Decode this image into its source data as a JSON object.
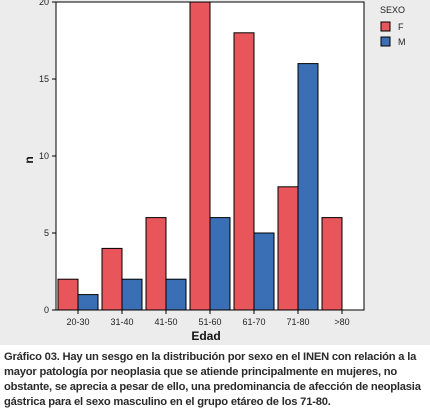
{
  "chart_data": {
    "type": "bar",
    "categories": [
      "20-30",
      "31-40",
      "41-50",
      "51-60",
      "61-70",
      "71-80",
      ">80"
    ],
    "series": [
      {
        "name": "F",
        "values": [
          2,
          4,
          6,
          20,
          18,
          8,
          6
        ],
        "color": "#e8555a"
      },
      {
        "name": "M",
        "values": [
          1,
          2,
          2,
          6,
          5,
          16,
          0
        ],
        "color": "#3a6fb5"
      }
    ],
    "title": "",
    "xlabel": "Edad",
    "ylabel": "n",
    "ylim": [
      0,
      20
    ],
    "yticks": [
      0,
      5,
      10,
      15,
      20
    ],
    "legend": {
      "title": "SEXO",
      "placement": "top-right"
    },
    "grid": false
  },
  "caption": "Gráfico 03. Hay un sesgo en la distribución por sexo en el INEN con relación a la mayor patología por neoplasia que se atiende principalmente en mujeres, no obstante, se aprecia a pesar de ello, una predominancia de afección de neoplasia gástrica para el sexo masculino en el grupo etáreo de los 71-80."
}
